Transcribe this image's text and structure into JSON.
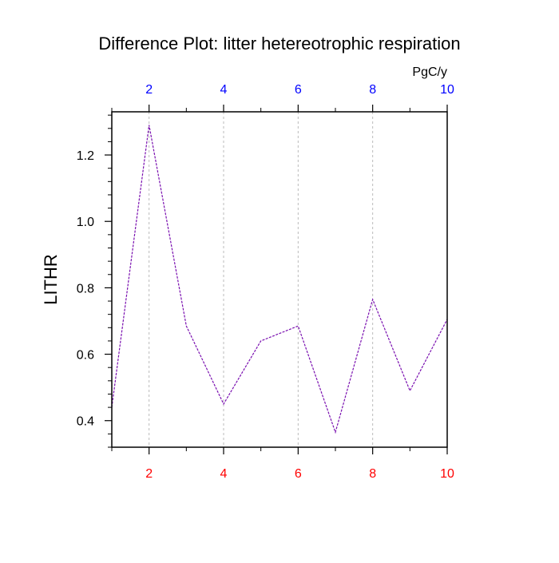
{
  "chart_data": {
    "type": "line",
    "title": "Difference Plot: litter hetereotrophic respiration",
    "ylabel": "LITHR",
    "units": "PgC/y",
    "x": [
      1,
      2,
      3,
      4,
      5,
      6,
      7,
      8,
      9,
      10
    ],
    "series": [
      {
        "values": [
          0.44,
          1.29,
          0.685,
          0.45,
          0.64,
          0.685,
          0.365,
          0.765,
          0.49,
          0.705
        ]
      }
    ],
    "xlim": [
      1,
      10
    ],
    "ylim": [
      0.32,
      1.33
    ],
    "x_ticks": [
      "2",
      "4",
      "6",
      "8",
      "10"
    ],
    "y_ticks": [
      "0.4",
      "0.6",
      "0.8",
      "1.0",
      "1.2"
    ],
    "grid": "vertical dashed at major x ticks",
    "colors": {
      "line": "#7a10b0",
      "bottom_ticks": "#ff0000",
      "top_ticks": "#0000ff",
      "grid": "#bbbbbb",
      "axis": "#000000"
    }
  }
}
